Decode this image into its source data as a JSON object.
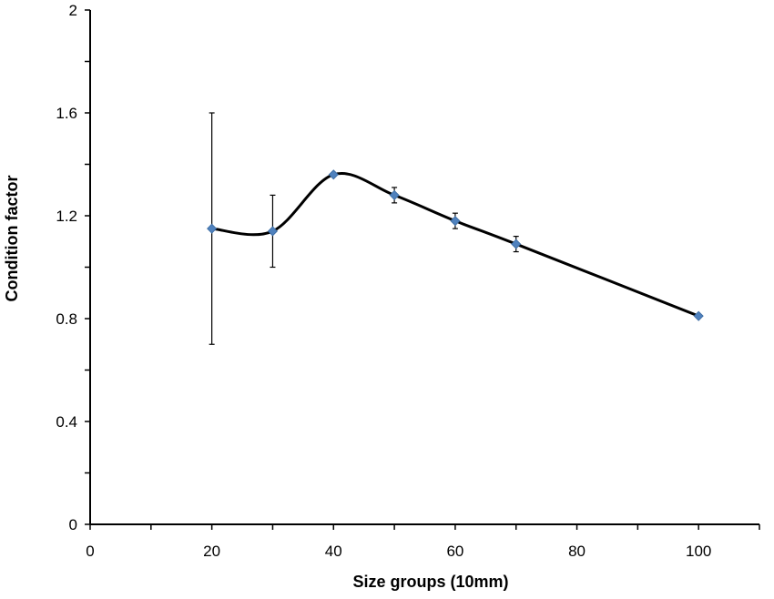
{
  "chart_data": {
    "type": "line",
    "title": "",
    "xlabel": "Size groups (10mm)",
    "ylabel": "Condition factor",
    "xlim": [
      0,
      110
    ],
    "ylim": [
      0,
      2
    ],
    "xticks": [
      0,
      20,
      40,
      60,
      80,
      100
    ],
    "yticks": [
      0,
      0.4,
      0.8,
      1.2,
      1.6,
      2
    ],
    "grid": false,
    "smooth": true,
    "marker": "diamond",
    "line_color": "#000000",
    "marker_color": "#4f81bd",
    "series": [
      {
        "x": [
          20,
          30,
          40,
          50,
          60,
          70,
          100
        ],
        "y": [
          1.15,
          1.14,
          1.36,
          1.28,
          1.18,
          1.09,
          0.81
        ],
        "error": [
          0.45,
          0.14,
          0.0,
          0.03,
          0.03,
          0.03,
          0.0
        ]
      }
    ]
  }
}
